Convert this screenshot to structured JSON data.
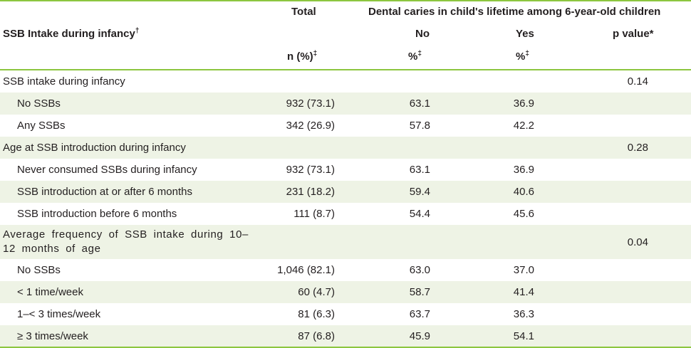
{
  "header": {
    "row_label": "SSB Intake during infancy",
    "row_label_mark": "†",
    "total": "Total",
    "group": "Dental caries in child's lifetime among 6-year-old children",
    "no": "No",
    "yes": "Yes",
    "p_value": "p value*",
    "n_pct": "n (%)",
    "n_pct_mark": "‡",
    "pct_no": "%",
    "pct_no_mark": "‡",
    "pct_yes": "%",
    "pct_yes_mark": "‡"
  },
  "sections": {
    "s1": {
      "label": "SSB intake during infancy",
      "p": "0.14"
    },
    "s2": {
      "label": "Age at SSB introduction during infancy",
      "p": "0.28"
    },
    "s3": {
      "label": "Average frequency of SSB intake during 10–12 months of age",
      "p": "0.04"
    }
  },
  "rows": {
    "r1": {
      "label": "No SSBs",
      "total": "932 (73.1)",
      "no": "63.1",
      "yes": "36.9"
    },
    "r2": {
      "label": "Any SSBs",
      "total": "342 (26.9)",
      "no": "57.8",
      "yes": "42.2"
    },
    "r3": {
      "label": "Never consumed SSBs during infancy",
      "total": "932 (73.1)",
      "no": "63.1",
      "yes": "36.9"
    },
    "r4": {
      "label": "SSB introduction at or after 6 months",
      "total": "231 (18.2)",
      "no": "59.4",
      "yes": "40.6"
    },
    "r5": {
      "label": "SSB introduction before 6 months",
      "total": "111 (8.7)",
      "no": "54.4",
      "yes": "45.6"
    },
    "r6": {
      "label": "No SSBs",
      "total": "1,046 (82.1)",
      "no": "63.0",
      "yes": "37.0"
    },
    "r7": {
      "label": "< 1 time/week",
      "total": "60 (4.7)",
      "no": "58.7",
      "yes": "41.4"
    },
    "r8": {
      "label": "1–< 3 times/week",
      "total": "81 (6.3)",
      "no": "63.7",
      "yes": "36.3"
    },
    "r9": {
      "label": "≥ 3 times/week",
      "total": "87 (6.8)",
      "no": "45.9",
      "yes": "54.1"
    }
  },
  "colors": {
    "rule": "#8cc63f",
    "shade": "#eef3e5",
    "text": "#231f20"
  }
}
